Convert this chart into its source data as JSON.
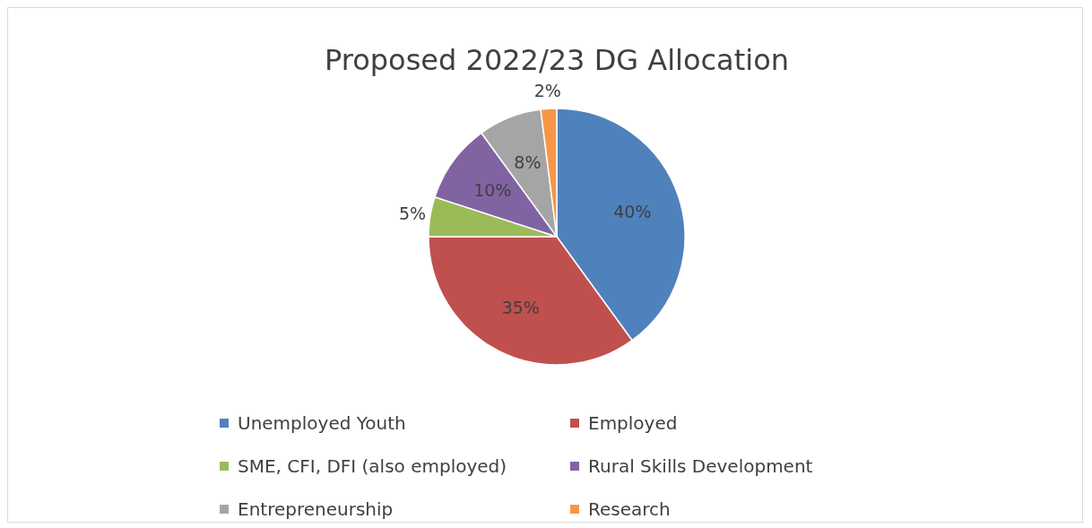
{
  "chart_data": {
    "type": "pie",
    "title": "Proposed 2022/23 DG Allocation",
    "categories": [
      "Unemployed Youth",
      "Employed",
      "SME, CFI, DFI (also employed)",
      "Rural Skills Development",
      "Entrepreneurship",
      "Research"
    ],
    "values": [
      40,
      35,
      5,
      10,
      8,
      2
    ],
    "colors": [
      "#4f81bd",
      "#c0504d",
      "#9bbb59",
      "#8064a2",
      "#a5a5a5",
      "#f79646"
    ],
    "value_labels": [
      "40%",
      "35%",
      "5%",
      "10%",
      "8%",
      "2%"
    ],
    "legend": "bottom"
  }
}
